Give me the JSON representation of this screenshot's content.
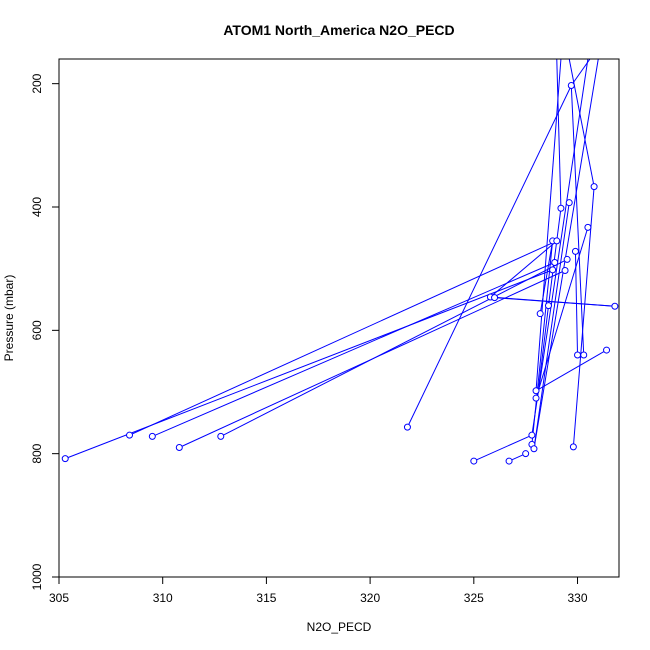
{
  "chart_data": {
    "type": "scatter",
    "title": "ATOM1 North_America N2O_PECD",
    "xlabel": "N2O_PECD",
    "ylabel": "Pressure (mbar)",
    "xlim": [
      305,
      332
    ],
    "ylim": [
      1000,
      160
    ],
    "y_reversed": true,
    "xticks": [
      305,
      310,
      315,
      320,
      325,
      330
    ],
    "yticks": [
      200,
      400,
      600,
      800,
      1000
    ],
    "grid": false,
    "series_color": "#0000ff",
    "visible_points": [
      {
        "x": 305.3,
        "y": 808
      },
      {
        "x": 308.4,
        "y": 770
      },
      {
        "x": 309.5,
        "y": 772
      },
      {
        "x": 310.8,
        "y": 790
      },
      {
        "x": 312.8,
        "y": 772
      },
      {
        "x": 321.8,
        "y": 757
      },
      {
        "x": 325.0,
        "y": 812
      },
      {
        "x": 325.8,
        "y": 546
      },
      {
        "x": 326.0,
        "y": 547
      },
      {
        "x": 326.7,
        "y": 812
      },
      {
        "x": 327.5,
        "y": 800
      },
      {
        "x": 327.8,
        "y": 770
      },
      {
        "x": 327.8,
        "y": 785
      },
      {
        "x": 327.9,
        "y": 792
      },
      {
        "x": 328.0,
        "y": 698
      },
      {
        "x": 328.0,
        "y": 710
      },
      {
        "x": 328.2,
        "y": 573
      },
      {
        "x": 328.6,
        "y": 560
      },
      {
        "x": 328.8,
        "y": 455
      },
      {
        "x": 328.8,
        "y": 502
      },
      {
        "x": 328.9,
        "y": 490
      },
      {
        "x": 329.0,
        "y": 455
      },
      {
        "x": 329.2,
        "y": 402
      },
      {
        "x": 329.4,
        "y": 503
      },
      {
        "x": 329.5,
        "y": 485
      },
      {
        "x": 329.6,
        "y": 393
      },
      {
        "x": 329.7,
        "y": 203
      },
      {
        "x": 329.8,
        "y": 789
      },
      {
        "x": 329.9,
        "y": 472
      },
      {
        "x": 330.0,
        "y": 640
      },
      {
        "x": 330.3,
        "y": 640
      },
      {
        "x": 330.5,
        "y": 433
      },
      {
        "x": 330.8,
        "y": 367
      },
      {
        "x": 331.4,
        "y": 632
      },
      {
        "x": 331.8,
        "y": 561
      }
    ],
    "connections": [
      [
        305.3,
        808,
        328.8,
        502
      ],
      [
        308.4,
        770,
        329.0,
        455
      ],
      [
        309.5,
        772,
        328.9,
        490
      ],
      [
        310.8,
        790,
        329.4,
        503
      ],
      [
        312.8,
        772,
        329.5,
        485
      ],
      [
        325.8,
        546,
        329.0,
        455
      ],
      [
        326.0,
        547,
        331.8,
        561
      ],
      [
        328.0,
        698,
        331.4,
        632
      ],
      [
        328.2,
        573,
        328.8,
        455
      ],
      [
        321.8,
        757,
        329.7,
        203
      ],
      [
        325.0,
        812,
        327.8,
        770
      ],
      [
        326.7,
        812,
        327.5,
        800
      ],
      [
        328.0,
        710,
        330.5,
        433
      ],
      [
        328.6,
        560,
        329.2,
        402
      ],
      [
        329.8,
        789,
        330.8,
        367
      ],
      [
        327.9,
        792,
        329.6,
        393
      ],
      [
        330.0,
        640,
        329.9,
        472
      ],
      [
        330.3,
        640,
        329.7,
        203
      ],
      [
        327.8,
        785,
        328.8,
        455
      ],
      [
        325.8,
        546,
        331.8,
        561
      ],
      [
        328.6,
        560,
        328.1,
        700
      ],
      [
        327.8,
        770,
        330.5,
        160
      ],
      [
        327.9,
        792,
        331.0,
        160
      ],
      [
        328.0,
        698,
        329.2,
        160
      ],
      [
        329.2,
        402,
        329.0,
        160
      ],
      [
        329.7,
        203,
        330.6,
        160
      ],
      [
        330.8,
        367,
        329.6,
        160
      ]
    ]
  }
}
